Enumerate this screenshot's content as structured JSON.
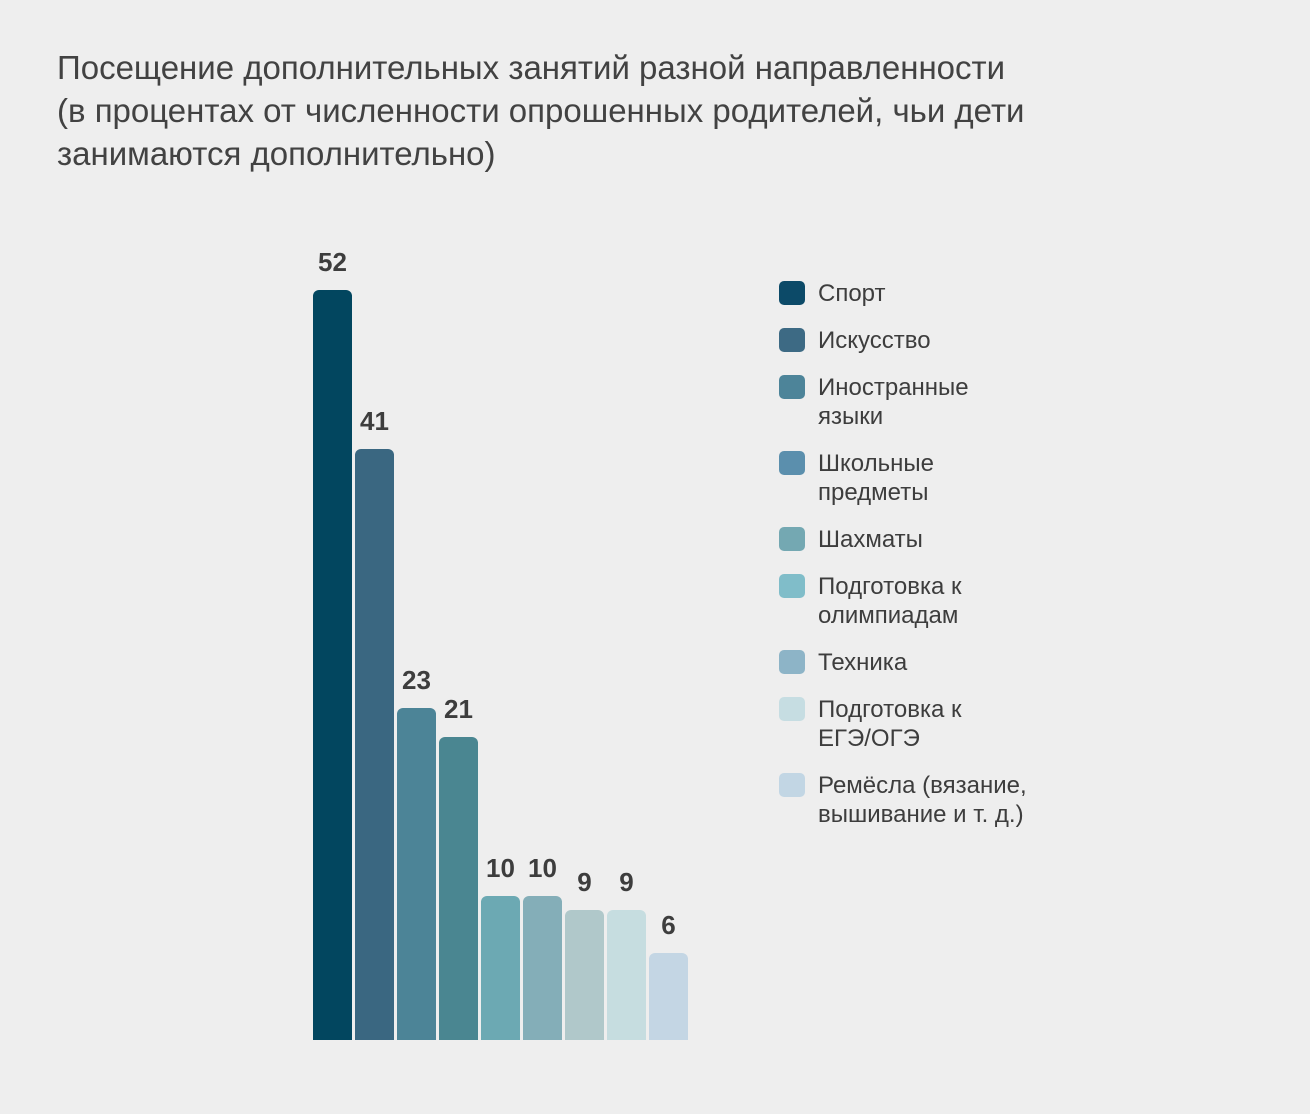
{
  "page": {
    "background": "#eeeeee",
    "title_lines": [
      "Посещение дополнительных занятий разной направленности",
      "(в процентах от численности опрошенных родителей, чьи дети",
      "занимаются дополнительно)"
    ]
  },
  "chart_data": {
    "type": "bar",
    "title": "Посещение дополнительных занятий разной направленности (в процентах от численности опрошенных родителей, чьи дети занимаются дополнительно)",
    "categories": [
      "Спорт",
      "Искусство",
      "Иностранные языки",
      "Школьные предметы",
      "Шахматы",
      "Подготовка к олимпиадам",
      "Техника",
      "Подготовка к ЕГЭ/ОГЭ",
      "Ремёсла (вязание, вышивание и т. д.)"
    ],
    "values": [
      52,
      41,
      23,
      21,
      10,
      10,
      9,
      9,
      6
    ],
    "unit": "percent",
    "ylim": [
      0,
      55
    ],
    "grid": false,
    "axes_visible": false,
    "value_labels": true,
    "legend_position": "right",
    "value_label_color": "#3d3d3d",
    "title_color": "#424242",
    "bar_colors": [
      "#02465f",
      "#3a6781",
      "#4c8497",
      "#4a8691",
      "#6ca9b3",
      "#84aeb8",
      "#b0c8ca",
      "#c6dde0",
      "#c4d6e4"
    ],
    "legend": {
      "items": [
        {
          "label": "Спорт",
          "lines": [
            "Спорт"
          ],
          "color": "#0c4a68"
        },
        {
          "label": "Искусство",
          "lines": [
            "Искусство"
          ],
          "color": "#3d6a84"
        },
        {
          "label": "Иностранные языки",
          "lines": [
            "Иностранные",
            "языки"
          ],
          "color": "#4d8499"
        },
        {
          "label": "Школьные предметы",
          "lines": [
            "Школьные",
            "предметы"
          ],
          "color": "#5b8fad"
        },
        {
          "label": "Шахматы",
          "lines": [
            "Шахматы"
          ],
          "color": "#74a8b2"
        },
        {
          "label": "Подготовка к олимпиадам",
          "lines": [
            "Подготовка к",
            "олимпиадам"
          ],
          "color": "#80bdc9"
        },
        {
          "label": "Техника",
          "lines": [
            "Техника"
          ],
          "color": "#8db4c7"
        },
        {
          "label": "Подготовка к ЕГЭ/ОГЭ",
          "lines": [
            "Подготовка к",
            "ЕГЭ/ОГЭ"
          ],
          "color": "#c6dde2"
        },
        {
          "label": "Ремёсла (вязание, вышивание и т. д.)",
          "lines": [
            "Ремёсла (вязание,",
            "вышивание и т. д.)"
          ],
          "color": "#c2d6e4"
        }
      ]
    }
  }
}
